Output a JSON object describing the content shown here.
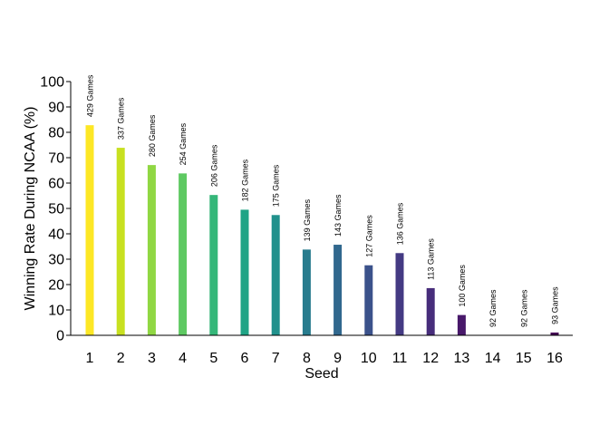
{
  "chart_data": {
    "type": "bar",
    "xlabel": "Seed",
    "ylabel": "Winning Rate During NCAA (%)",
    "ylim": [
      0,
      100
    ],
    "yticks": [
      0,
      10,
      20,
      30,
      40,
      50,
      60,
      70,
      80,
      90,
      100
    ],
    "grid": false,
    "legend": "none",
    "categories": [
      "1",
      "2",
      "3",
      "4",
      "5",
      "6",
      "7",
      "8",
      "9",
      "10",
      "11",
      "12",
      "13",
      "14",
      "15",
      "16"
    ],
    "values": [
      82.8,
      73.9,
      67.1,
      63.8,
      55.3,
      49.5,
      47.4,
      33.8,
      35.7,
      27.6,
      32.4,
      18.6,
      8.0,
      0,
      0,
      1.1
    ],
    "labels": [
      "429 Games",
      "337 Games",
      "280 Games",
      "254 Games",
      "206 Games",
      "182 Games",
      "175 Games",
      "139 Games",
      "143 Games",
      "127 Games",
      "136 Games",
      "113 Games",
      "100 Games",
      "92 Games",
      "92 Games",
      "93 Games"
    ],
    "colors": [
      "#FDE725",
      "#C8E020",
      "#90D743",
      "#5EC962",
      "#35B779",
      "#20A486",
      "#21918C",
      "#287C8E",
      "#31688E",
      "#3B528B",
      "#443A83",
      "#472D7B",
      "#48186A",
      "#440154"
    ]
  }
}
